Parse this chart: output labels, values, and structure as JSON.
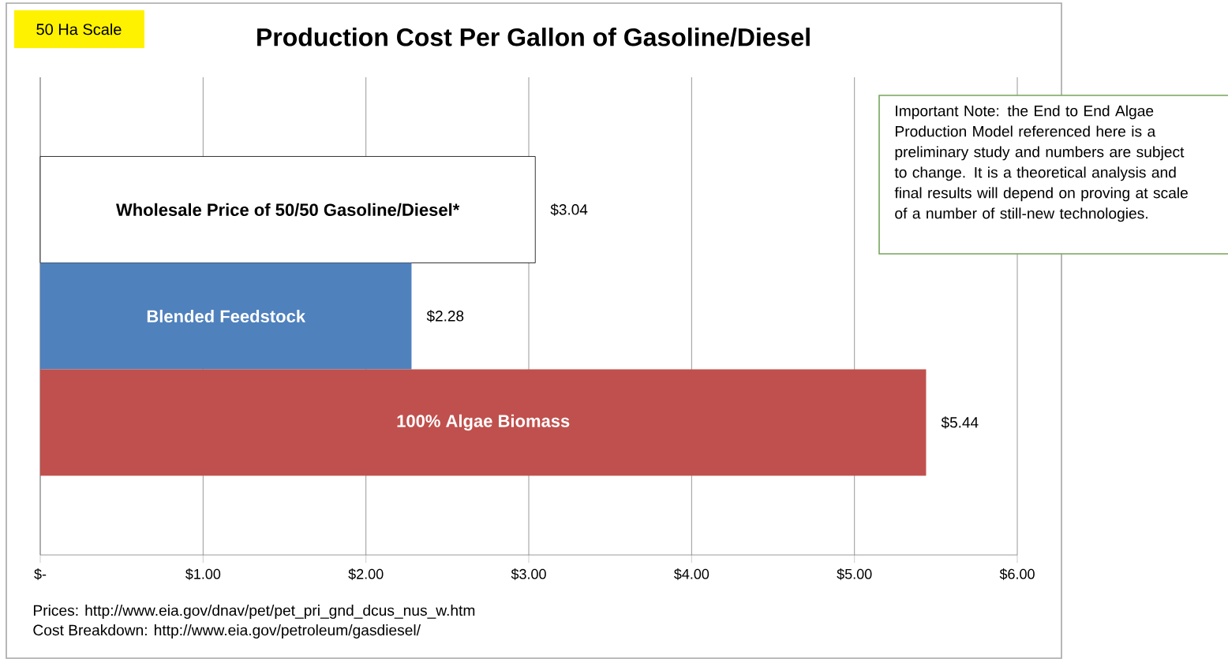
{
  "chart_data": {
    "type": "bar",
    "orientation": "horizontal",
    "title": "Production Cost Per Gallon of Gasoline/Diesel",
    "categories": [
      "Wholesale Price of 50/50 Gasoline/Diesel*",
      "Blended Feedstock",
      "100% Algae Biomass"
    ],
    "values": [
      3.04,
      2.28,
      5.44
    ],
    "colors": [
      "#ffffff",
      "#4f81bd",
      "#c0504d"
    ],
    "value_labels": [
      "$3.04",
      "$2.28",
      "$5.44"
    ],
    "xlim": [
      0,
      6
    ],
    "xticks": [
      {
        "value": 0,
        "label": "$-"
      },
      {
        "value": 1,
        "label": "$1.00"
      },
      {
        "value": 2,
        "label": "$2.00"
      },
      {
        "value": 3,
        "label": "$3.00"
      },
      {
        "value": 4,
        "label": "$4.00"
      },
      {
        "value": 5,
        "label": "$5.00"
      },
      {
        "value": 6,
        "label": "$6.00"
      }
    ],
    "grid": "x",
    "annotations": [
      "50 Ha Scale",
      "Important Note: the End to End Algae Production Model referenced here is a preliminary study and numbers are subject to change. It is a theoretical analysis and final results will depend on proving at scale of a number of still-new technologies.",
      "Prices: http://www.eia.gov/dnav/pet/pet_pri_gnd_dcus_nus_w.htm",
      "Cost Breakdown: http://www.eia.gov/petroleum/gasdiesel/"
    ]
  }
}
